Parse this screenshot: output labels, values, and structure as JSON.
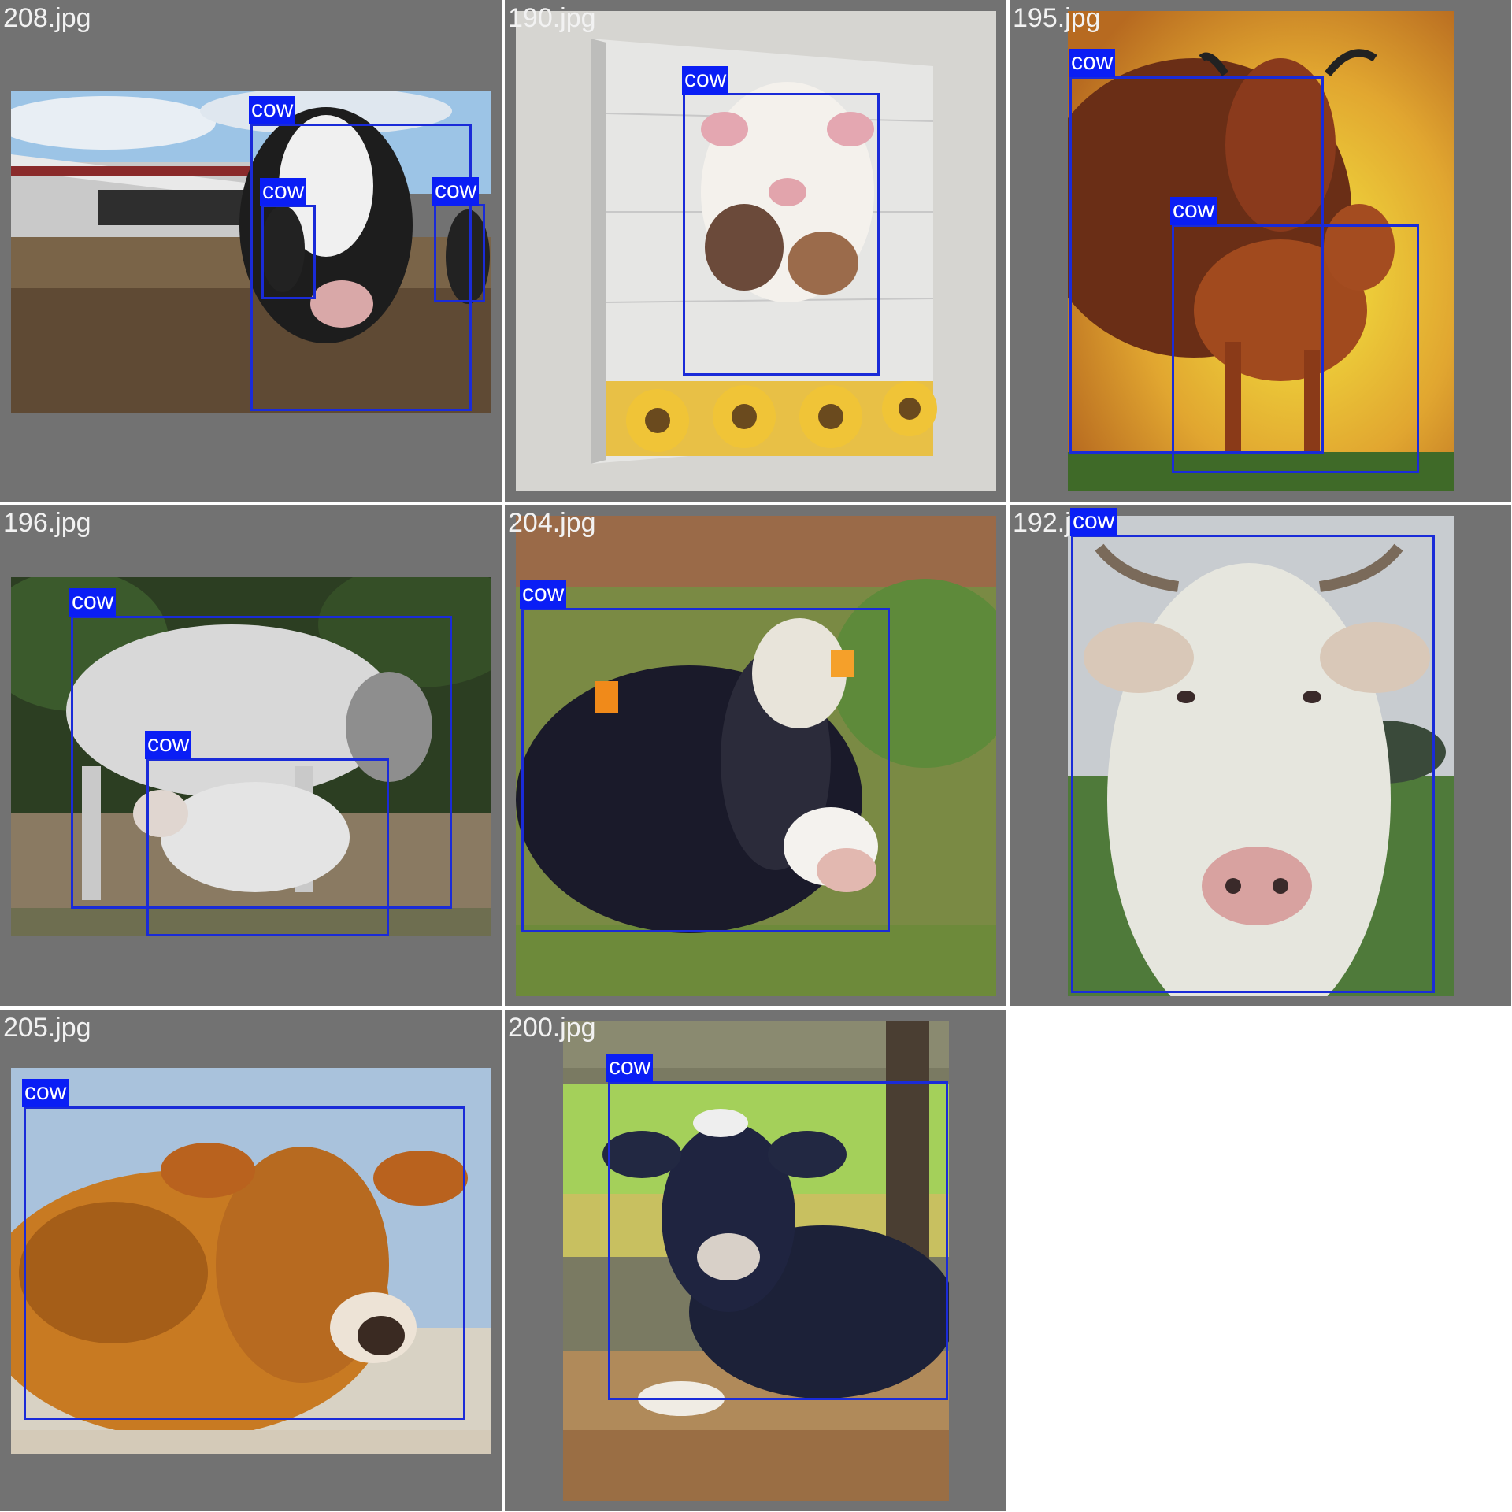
{
  "grid_title": "",
  "colors": {
    "tile_background": "#727272",
    "box": "#1a2bd8",
    "tag_background": "#0a1ef5",
    "tag_text": "#ffffff"
  },
  "tiles": [
    {
      "filename": "208.jpg",
      "scene": "dairy-barn-yard",
      "detections": [
        {
          "label": "cow"
        },
        {
          "label": "cow"
        },
        {
          "label": "cow"
        }
      ]
    },
    {
      "filename": "190.jpg",
      "scene": "cow-canvas-with-sunflowers",
      "detections": [
        {
          "label": "cow"
        }
      ]
    },
    {
      "filename": "195.jpg",
      "scene": "brown-cow-and-calf-golden-sky",
      "detections": [
        {
          "label": "cow"
        },
        {
          "label": "cow"
        }
      ]
    },
    {
      "filename": "196.jpg",
      "scene": "white-cow-nursing-calf",
      "detections": [
        {
          "label": "cow"
        },
        {
          "label": "cow"
        }
      ]
    },
    {
      "filename": "204.jpg",
      "scene": "holstein-lying-in-grass",
      "detections": [
        {
          "label": "cow"
        }
      ]
    },
    {
      "filename": "192.jpg",
      "scene": "white-horned-cow-portrait",
      "detections": [
        {
          "label": "cow"
        }
      ]
    },
    {
      "filename": "205.jpg",
      "scene": "jersey-cow-lying-on-sand",
      "detections": [
        {
          "label": "cow"
        }
      ]
    },
    {
      "filename": "200.jpg",
      "scene": "black-cow-lying-in-stall",
      "detections": [
        {
          "label": "cow"
        }
      ]
    }
  ]
}
